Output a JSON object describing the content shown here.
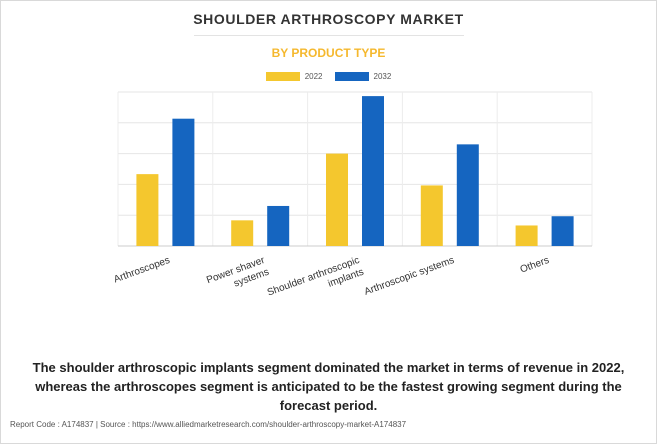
{
  "title": "SHOULDER ARTHROSCOPY MARKET",
  "subtitle": "BY PRODUCT TYPE",
  "colors": {
    "2022": "#f4c72e",
    "2032": "#1565c0"
  },
  "chart_data": {
    "type": "bar",
    "categories": [
      "Arthroscopes",
      "Power shaver systems",
      "Shoulder arthroscopic implants",
      "Arthroscopic systems",
      "Others"
    ],
    "category_labels": [
      [
        "Arthroscopes"
      ],
      [
        "Power shaver",
        "systems"
      ],
      [
        "Shoulder arthroscopic",
        "implants"
      ],
      [
        "Arthroscopic systems"
      ],
      [
        "Others"
      ]
    ],
    "series": [
      {
        "name": "2022",
        "values": [
          70,
          25,
          90,
          59,
          20
        ]
      },
      {
        "name": "2032",
        "values": [
          124,
          39,
          146,
          99,
          29
        ]
      }
    ],
    "ylim": [
      0,
      150
    ],
    "gridlines": 5,
    "legend_position": "top-center",
    "xlabel": "",
    "ylabel": ""
  },
  "caption": "The shoulder arthroscopic implants segment dominated the market in terms of revenue in 2022, whereas the arthroscopes segment is anticipated to be the fastest growing segment during the forecast period.",
  "footer": "Report Code : A174837  |  Source : https://www.alliedmarketresearch.com/shoulder-arthroscopy-market-A174837"
}
